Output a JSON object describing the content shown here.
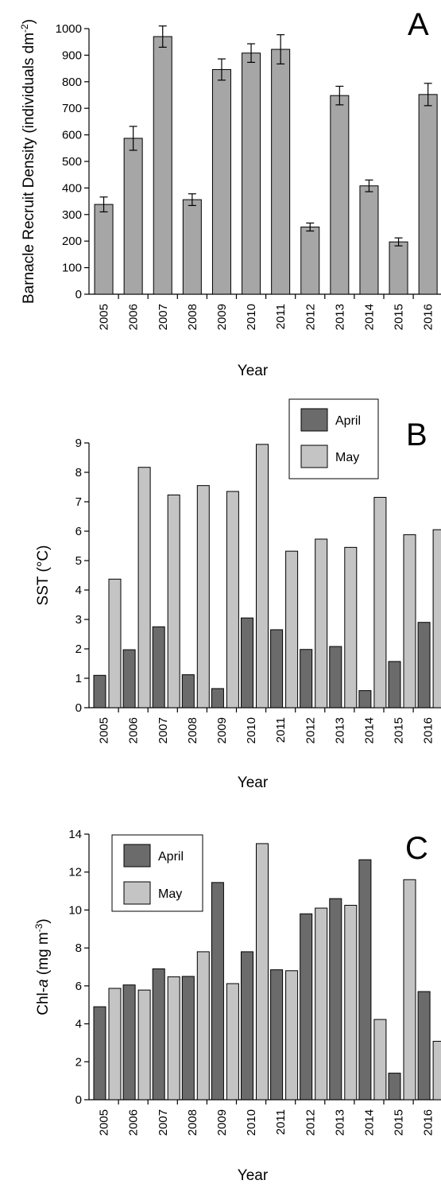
{
  "chart_data": [
    {
      "panel": "A",
      "type": "bar",
      "categories": [
        "2005",
        "2006",
        "2007",
        "2008",
        "2009",
        "2010",
        "2011",
        "2012",
        "2013",
        "2014",
        "2015",
        "2016"
      ],
      "series": [
        {
          "values": [
            338,
            587,
            970,
            356,
            846,
            908,
            922,
            253,
            748,
            408,
            197,
            752
          ],
          "errors": [
            28,
            45,
            40,
            22,
            40,
            35,
            55,
            15,
            35,
            22,
            15,
            42
          ],
          "color": "#a6a6a6"
        }
      ],
      "xlabel": "Year",
      "ylabel": "Barnacle Recruit Density (individuals dm",
      "ylabel_sup": "-2",
      "ylabel_close": ")",
      "ylim": [
        0,
        1000
      ],
      "yticks": [
        0,
        100,
        200,
        300,
        400,
        500,
        600,
        700,
        800,
        900,
        1000
      ]
    },
    {
      "panel": "B",
      "type": "bar",
      "categories": [
        "2005",
        "2006",
        "2007",
        "2008",
        "2009",
        "2010",
        "2011",
        "2012",
        "2013",
        "2014",
        "2015",
        "2016"
      ],
      "series": [
        {
          "name": "April",
          "values": [
            1.1,
            1.97,
            2.75,
            1.12,
            0.65,
            3.05,
            2.65,
            1.98,
            2.08,
            0.58,
            1.57,
            2.9
          ],
          "color": "#6b6b6b"
        },
        {
          "name": "May",
          "values": [
            4.37,
            8.17,
            7.23,
            7.55,
            7.35,
            8.95,
            5.32,
            5.73,
            5.45,
            7.15,
            5.88,
            6.05
          ],
          "color": "#c4c4c4"
        }
      ],
      "xlabel": "Year",
      "ylabel": "SST (°C)",
      "ylim": [
        0,
        9
      ],
      "yticks": [
        0,
        1,
        2,
        3,
        4,
        5,
        6,
        7,
        8,
        9
      ],
      "legend": "top-right"
    },
    {
      "panel": "C",
      "type": "bar",
      "categories": [
        "2005",
        "2006",
        "2007",
        "2008",
        "2009",
        "2010",
        "2011",
        "2012",
        "2013",
        "2014",
        "2015",
        "2016"
      ],
      "series": [
        {
          "name": "April",
          "values": [
            4.9,
            6.05,
            6.9,
            6.5,
            11.45,
            7.8,
            6.85,
            9.8,
            10.6,
            12.65,
            1.4,
            5.7
          ],
          "color": "#6b6b6b"
        },
        {
          "name": "May",
          "values": [
            5.87,
            5.78,
            6.48,
            7.8,
            6.12,
            13.5,
            6.8,
            10.1,
            10.25,
            4.23,
            11.6,
            3.08
          ],
          "color": "#c4c4c4"
        }
      ],
      "xlabel": "Year",
      "ylabel_prefix": "Chl-",
      "ylabel_italic": "a",
      "ylabel_units": " (mg m",
      "ylabel_sup": "-3",
      "ylabel_close": ")",
      "ylim": [
        0,
        14
      ],
      "yticks": [
        0,
        2,
        4,
        6,
        8,
        10,
        12,
        14
      ],
      "legend": "top-left"
    }
  ]
}
